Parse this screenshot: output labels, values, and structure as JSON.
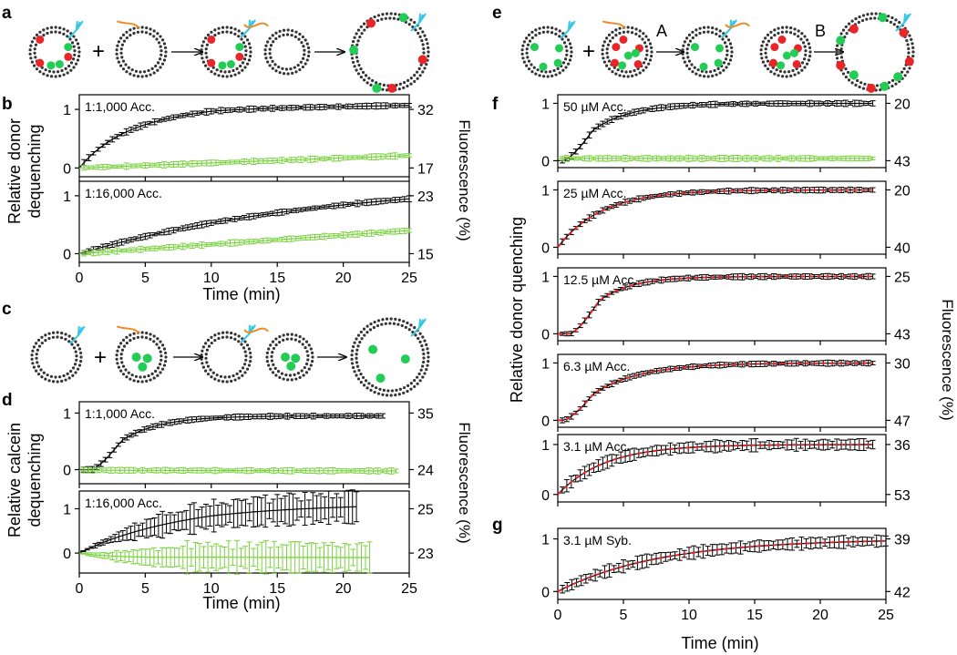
{
  "figure": {
    "panel_labels": [
      "a",
      "b",
      "c",
      "d",
      "e",
      "f",
      "g"
    ],
    "step_labels": [
      "A",
      "B"
    ],
    "colors": {
      "donor": "#000000",
      "acceptor": "#7ad13f",
      "fit": "#e8222a",
      "dye_green": "#22cc55",
      "dye_red": "#e8262a",
      "snare_cyan": "#33c8e6",
      "snare_orange": "#f08a24",
      "lipid": "#333333"
    }
  },
  "chart_data": [
    {
      "id": "b1",
      "panel": "b",
      "type": "line",
      "annotation": "1:1,000 Acc.",
      "xlim": [
        0,
        25
      ],
      "xticks": [
        0,
        5,
        10,
        15,
        20,
        25
      ],
      "ylim": [
        -0.15,
        1.25
      ],
      "yticks": [
        0,
        1
      ],
      "right_ticks": [
        "32",
        "17"
      ],
      "series": [
        {
          "name": "donor",
          "color": "#000000",
          "end": 25,
          "kind": "exp",
          "a": 0.85,
          "k": 0.3,
          "b": 0.12,
          "slope": 0.004
        },
        {
          "name": "acceptor",
          "color": "#7ad13f",
          "end": 25,
          "kind": "lin",
          "a": 0,
          "slope": 0.0085
        }
      ]
    },
    {
      "id": "b2",
      "panel": "b",
      "type": "line",
      "annotation": "1:16,000 Acc.",
      "xlim": [
        0,
        25
      ],
      "xticks": [
        0,
        5,
        10,
        15,
        20,
        25
      ],
      "ylim": [
        -0.15,
        1.25
      ],
      "yticks": [
        0,
        1
      ],
      "right_ticks": [
        "23",
        "15"
      ],
      "series": [
        {
          "name": "donor",
          "color": "#000000",
          "end": 25,
          "kind": "exp",
          "a": 1.3,
          "k": 0.05,
          "b": 0.02,
          "slope": 0
        },
        {
          "name": "acceptor",
          "color": "#7ad13f",
          "end": 25,
          "kind": "lin",
          "a": 0.0,
          "slope": 0.016
        }
      ]
    },
    {
      "id": "d1",
      "panel": "d",
      "type": "line",
      "annotation": "1:1,000 Acc.",
      "xlim": [
        0,
        25
      ],
      "xticks": [
        0,
        5,
        10,
        15,
        20,
        25
      ],
      "ylim": [
        -0.25,
        1.2
      ],
      "yticks": [
        0,
        1
      ],
      "right_ticks": [
        "35",
        "24"
      ],
      "series": [
        {
          "name": "donor",
          "color": "#000000",
          "end": 23,
          "kind": "sig",
          "a": 0.95,
          "k": 0.35,
          "t0": 1.0
        },
        {
          "name": "acceptor",
          "color": "#7ad13f",
          "end": 24,
          "kind": "lin",
          "a": -0.01,
          "slope": -0.0006
        }
      ]
    },
    {
      "id": "d2",
      "panel": "d",
      "type": "line",
      "annotation": "1:16,000 Acc.",
      "xlim": [
        0,
        25
      ],
      "xticks": [
        0,
        5,
        10,
        15,
        20,
        25
      ],
      "ylim": [
        -0.45,
        1.4
      ],
      "yticks": [
        0,
        1
      ],
      "right_ticks": [
        "25",
        "23"
      ],
      "series": [
        {
          "name": "donor",
          "color": "#000000",
          "end": 21,
          "kind": "exp",
          "a": 0.9,
          "k": 0.15,
          "b": 0.1,
          "slope": 0.004
        },
        {
          "name": "acceptor",
          "color": "#7ad13f",
          "end": 22,
          "kind": "exp",
          "a": -0.15,
          "k": 0.3,
          "b": 0.05,
          "slope": 0
        }
      ]
    },
    {
      "id": "f1",
      "panel": "f",
      "type": "line",
      "annotation": "50 µM Acc.",
      "xlim": [
        0,
        25
      ],
      "xticks": [
        0,
        5,
        10,
        15,
        20,
        25
      ],
      "ylim": [
        -0.12,
        1.15
      ],
      "yticks": [
        0,
        1
      ],
      "right_ticks": [
        "20",
        "43"
      ],
      "series": [
        {
          "name": "donor",
          "color": "#000000",
          "end": 24,
          "kind": "sig",
          "a": 1.0,
          "k": 0.35,
          "t0": 0.5
        },
        {
          "name": "acceptor",
          "color": "#7ad13f",
          "end": 24,
          "kind": "lin",
          "a": 0.04,
          "slope": 0
        }
      ]
    },
    {
      "id": "f2",
      "panel": "f",
      "type": "line",
      "annotation": "25 µM Acc.",
      "xlim": [
        0,
        25
      ],
      "xticks": [
        0,
        5,
        10,
        15,
        20,
        25
      ],
      "ylim": [
        -0.12,
        1.15
      ],
      "yticks": [
        0,
        1
      ],
      "right_ticks": [
        "20",
        "40"
      ],
      "series": [
        {
          "name": "donor",
          "color": "#000000",
          "end": 24,
          "kind": "exp",
          "a": 1.0,
          "k": 0.3,
          "b": 0.0,
          "slope": 0
        },
        {
          "name": "fit",
          "color": "#e8222a",
          "end": 24,
          "kind": "exp",
          "a": 1.0,
          "k": 0.3,
          "b": 0.0,
          "slope": 0,
          "dashed": true
        }
      ]
    },
    {
      "id": "f3",
      "panel": "f",
      "type": "line",
      "annotation": "12.5 µM Acc.",
      "xlim": [
        0,
        25
      ],
      "xticks": [
        0,
        5,
        10,
        15,
        20,
        25
      ],
      "ylim": [
        -0.12,
        1.15
      ],
      "yticks": [
        0,
        1
      ],
      "right_ticks": [
        "25",
        "43"
      ],
      "series": [
        {
          "name": "donor",
          "color": "#000000",
          "end": 24,
          "kind": "sig",
          "a": 1.0,
          "k": 0.4,
          "t0": 1.0
        },
        {
          "name": "fit",
          "color": "#e8222a",
          "end": 24,
          "kind": "sig",
          "a": 1.0,
          "k": 0.4,
          "t0": 1.0,
          "dashed": true
        }
      ]
    },
    {
      "id": "f4",
      "panel": "f",
      "type": "line",
      "annotation": "6.3 µM Acc.",
      "xlim": [
        0,
        25
      ],
      "xticks": [
        0,
        5,
        10,
        15,
        20,
        25
      ],
      "ylim": [
        -0.12,
        1.15
      ],
      "yticks": [
        0,
        1
      ],
      "right_ticks": [
        "30",
        "47"
      ],
      "series": [
        {
          "name": "donor",
          "color": "#000000",
          "end": 24,
          "kind": "sig",
          "a": 1.0,
          "k": 0.28,
          "t0": 0.5
        },
        {
          "name": "fit",
          "color": "#e8222a",
          "end": 24,
          "kind": "sig",
          "a": 1.0,
          "k": 0.28,
          "t0": 0.5,
          "dashed": true
        }
      ]
    },
    {
      "id": "f5",
      "panel": "f",
      "type": "line",
      "annotation": "3.1 µM Acc.",
      "xlim": [
        0,
        25
      ],
      "xticks": [
        0,
        5,
        10,
        15,
        20,
        25
      ],
      "ylim": [
        -0.15,
        1.2
      ],
      "yticks": [
        0,
        1
      ],
      "right_ticks": [
        "36",
        "53"
      ],
      "series": [
        {
          "name": "donor",
          "color": "#000000",
          "end": 24,
          "kind": "exp",
          "a": 1.0,
          "k": 0.28,
          "b": 0.0,
          "slope": 0
        },
        {
          "name": "fit",
          "color": "#e8222a",
          "end": 24,
          "kind": "exp",
          "a": 1.0,
          "k": 0.28,
          "b": 0.0,
          "slope": 0,
          "dashed": true
        }
      ]
    },
    {
      "id": "g1",
      "panel": "g",
      "type": "line",
      "annotation": "3.1 µM Syb.",
      "xlim": [
        0,
        25
      ],
      "xticks": [
        0,
        5,
        10,
        15,
        20,
        25
      ],
      "ylim": [
        -0.15,
        1.2
      ],
      "yticks": [
        0,
        1
      ],
      "right_ticks": [
        "39",
        "42"
      ],
      "series": [
        {
          "name": "donor",
          "color": "#000000",
          "end": 25,
          "kind": "exp",
          "a": 1.0,
          "k": 0.13,
          "b": 0.0,
          "slope": 0
        },
        {
          "name": "fit",
          "color": "#e8222a",
          "end": 25,
          "kind": "exp",
          "a": 1.0,
          "k": 0.13,
          "b": 0.0,
          "slope": 0,
          "dashed": true
        }
      ]
    }
  ],
  "axis_labels": {
    "b": {
      "x": "Time (min)",
      "y": [
        "Relative donor",
        "dequenching"
      ],
      "right": "Fluorescence (%)"
    },
    "d": {
      "x": "Time (min)",
      "y": [
        "Relative calcein",
        "dequenching"
      ],
      "right": "Fluorescence (%)"
    },
    "fg": {
      "x": "Time (min)",
      "y": "Relative donor quenching",
      "right": "Fluorescence (%)"
    }
  }
}
